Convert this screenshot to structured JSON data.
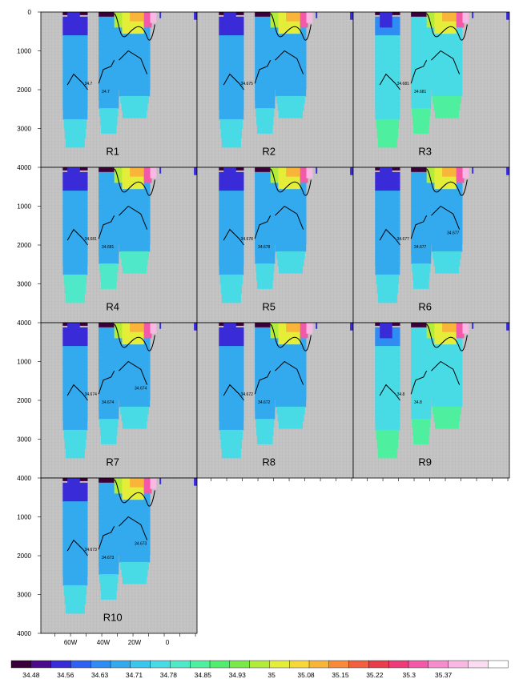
{
  "chart_data": {
    "type": "heatmap",
    "title": "",
    "xlabel": "",
    "ylabel": "",
    "x_ticks": [
      "60W",
      "40W",
      "20W",
      "0"
    ],
    "y_ticks": [
      "0",
      "1000",
      "2000",
      "3000",
      "4000"
    ],
    "ylim": [
      0,
      4000
    ],
    "colorbar": {
      "ticks": [
        "34.48",
        "34.56",
        "34.63",
        "34.71",
        "34.78",
        "34.85",
        "34.93",
        "35",
        "35.08",
        "35.15",
        "35.22",
        "35.3",
        "35.37"
      ],
      "colors": [
        "#3a003a",
        "#4b0a8c",
        "#3a2bd8",
        "#2f62f0",
        "#2e8cf2",
        "#33a9ee",
        "#3cc6ec",
        "#48dbe6",
        "#4fe8c8",
        "#4ef0a0",
        "#52ec6e",
        "#79e84a",
        "#b2ec3a",
        "#e4ee38",
        "#f6d838",
        "#f9b43a",
        "#f88a3c",
        "#f2603f",
        "#ea3d4b",
        "#ee3c7a",
        "#f25aa9",
        "#f58ccd",
        "#f8b8e3",
        "#fbdcf1",
        "#ffffff"
      ]
    },
    "panels": [
      {
        "label": "R1",
        "contours": [
          "34.7",
          "34.7"
        ]
      },
      {
        "label": "R2",
        "contours": [
          "34.675"
        ]
      },
      {
        "label": "R3",
        "contours": [
          "34.681",
          "34.681"
        ]
      },
      {
        "label": "R4",
        "contours": [
          "34.681",
          "34.681"
        ]
      },
      {
        "label": "R5",
        "contours": [
          "34.678",
          "34.678"
        ]
      },
      {
        "label": "R6",
        "contours": [
          "34.677",
          "34.677",
          "34.677"
        ]
      },
      {
        "label": "R7",
        "contours": [
          "34.674",
          "34.674",
          "34.674"
        ]
      },
      {
        "label": "R8",
        "contours": [
          "34.672",
          "34.672"
        ]
      },
      {
        "label": "R9",
        "contours": [
          "34.8",
          "34.8"
        ]
      },
      {
        "label": "R10",
        "contours": [
          "34.673",
          "34.673",
          "34.673"
        ]
      }
    ]
  }
}
